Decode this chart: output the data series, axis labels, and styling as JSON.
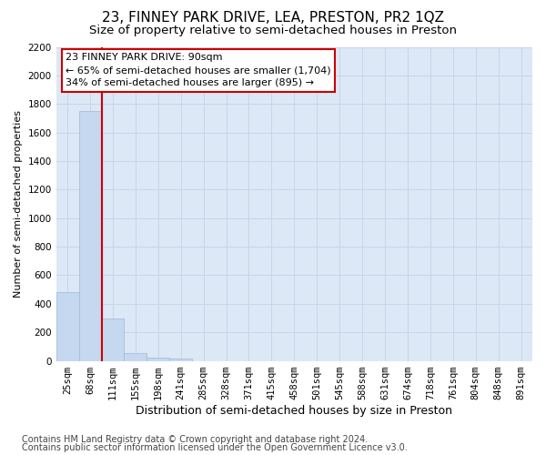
{
  "title": "23, FINNEY PARK DRIVE, LEA, PRESTON, PR2 1QZ",
  "subtitle": "Size of property relative to semi-detached houses in Preston",
  "xlabel": "Distribution of semi-detached houses by size in Preston",
  "ylabel": "Number of semi-detached properties",
  "footnote1": "Contains HM Land Registry data © Crown copyright and database right 2024.",
  "footnote2": "Contains public sector information licensed under the Open Government Licence v3.0.",
  "categories": [
    "25sqm",
    "68sqm",
    "111sqm",
    "155sqm",
    "198sqm",
    "241sqm",
    "285sqm",
    "328sqm",
    "371sqm",
    "415sqm",
    "458sqm",
    "501sqm",
    "545sqm",
    "588sqm",
    "631sqm",
    "674sqm",
    "718sqm",
    "761sqm",
    "804sqm",
    "848sqm",
    "891sqm"
  ],
  "values": [
    480,
    1750,
    300,
    55,
    25,
    15,
    0,
    0,
    0,
    0,
    0,
    0,
    0,
    0,
    0,
    0,
    0,
    0,
    0,
    0,
    0
  ],
  "bar_color": "#c5d8f0",
  "bar_edge_color": "#a0b8d8",
  "property_line_color": "#cc0000",
  "property_line_bar_index": 1,
  "annotation_line1": "23 FINNEY PARK DRIVE: 90sqm",
  "annotation_line2": "← 65% of semi-detached houses are smaller (1,704)",
  "annotation_line3": "34% of semi-detached houses are larger (895) →",
  "annotation_box_facecolor": "#ffffff",
  "annotation_box_edgecolor": "#cc0000",
  "ylim_max": 2200,
  "yticks": [
    0,
    200,
    400,
    600,
    800,
    1000,
    1200,
    1400,
    1600,
    1800,
    2000,
    2200
  ],
  "grid_color": "#c8d4e8",
  "bg_color": "#dce8f5",
  "title_fontsize": 11,
  "subtitle_fontsize": 9.5,
  "ylabel_fontsize": 8,
  "xlabel_fontsize": 9,
  "tick_fontsize": 7.5,
  "annotation_fontsize": 8,
  "footnote_fontsize": 7
}
